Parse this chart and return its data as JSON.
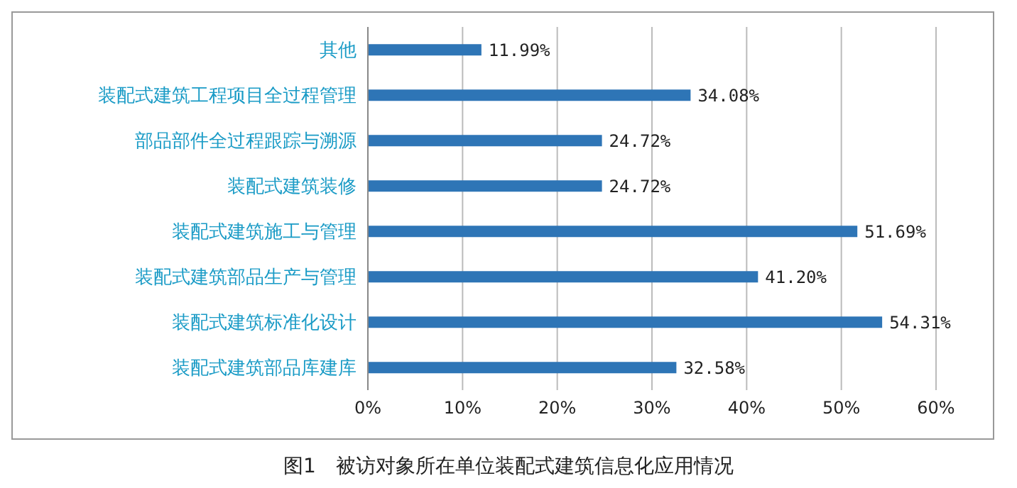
{
  "chart_data": {
    "type": "bar",
    "orientation": "horizontal",
    "title": "图1　被访对象所在单位装配式建筑信息化应用情况",
    "categories": [
      "其他",
      "装配式建筑工程项目全过程管理",
      "部品部件全过程跟踪与溯源",
      "装配式建筑装修",
      "装配式建筑施工与管理",
      "装配式建筑部品生产与管理",
      "装配式建筑标准化设计",
      "装配式建筑部品库建库"
    ],
    "values": [
      11.99,
      34.08,
      24.72,
      24.72,
      51.69,
      41.2,
      54.31,
      32.58
    ],
    "value_labels": [
      "11.99%",
      "34.08%",
      "24.72%",
      "24.72%",
      "51.69%",
      "41.20%",
      "54.31%",
      "32.58%"
    ],
    "color": "#2e75b6",
    "xlim": [
      0,
      60
    ],
    "xticks": [
      {
        "value": 0,
        "label": "0%"
      },
      {
        "value": 10,
        "label": "10%"
      },
      {
        "value": 20,
        "label": "20%"
      },
      {
        "value": 30,
        "label": "30%"
      },
      {
        "value": 40,
        "label": "40%"
      },
      {
        "value": 50,
        "label": "50%"
      },
      {
        "value": 60,
        "label": "60%"
      }
    ],
    "grid": "x",
    "legend": false
  }
}
